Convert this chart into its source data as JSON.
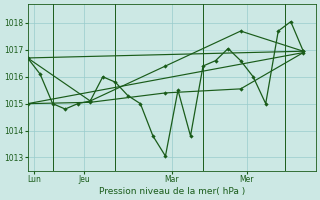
{
  "background_color": "#cce8e4",
  "plot_bg": "#cce8e4",
  "grid_color": "#99cccc",
  "line_color": "#1a5c1a",
  "title": "Pression niveau de la mer( hPa )",
  "ylim": [
    1012.5,
    1018.7
  ],
  "yticks": [
    1013,
    1014,
    1015,
    1016,
    1017,
    1018
  ],
  "day_labels": [
    "Lun",
    "Jeu",
    "Mar",
    "Mer"
  ],
  "day_positions": [
    0.5,
    4.5,
    11.5,
    17.5
  ],
  "vline_positions": [
    2.0,
    7.0,
    14.0,
    20.5
  ],
  "xlim": [
    0,
    23
  ],
  "series1_x": [
    0,
    1,
    2,
    3,
    4,
    5,
    6,
    7,
    8,
    9,
    10,
    11,
    12,
    13,
    14,
    15,
    16,
    17,
    18,
    19,
    20,
    21,
    22
  ],
  "series1_y": [
    1016.7,
    1016.1,
    1015.0,
    1014.8,
    1015.0,
    1015.1,
    1016.0,
    1015.8,
    1015.3,
    1015.0,
    1013.8,
    1013.05,
    1015.5,
    1013.8,
    1016.4,
    1016.6,
    1017.05,
    1016.6,
    1016.0,
    1015.0,
    1017.7,
    1018.05,
    1016.95
  ],
  "trend1_x": [
    0,
    22
  ],
  "trend1_y": [
    1015.0,
    1016.9
  ],
  "trend2_x": [
    0,
    22
  ],
  "trend2_y": [
    1016.7,
    1016.95
  ],
  "smooth1_x": [
    0,
    5,
    11,
    17,
    22
  ],
  "smooth1_y": [
    1015.0,
    1015.05,
    1015.4,
    1015.55,
    1016.9
  ],
  "smooth2_x": [
    0,
    5,
    11,
    17,
    22
  ],
  "smooth2_y": [
    1016.7,
    1015.1,
    1016.4,
    1017.7,
    1016.95
  ]
}
